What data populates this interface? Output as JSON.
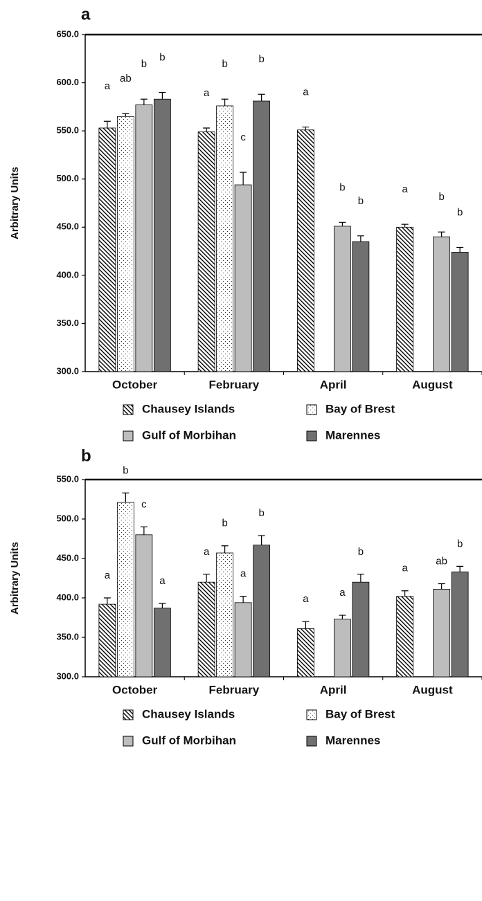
{
  "chart_data": [
    {
      "type": "bar",
      "panel_label": "a",
      "y_label": "Arbitrary Units",
      "categories": [
        "October",
        "February",
        "April",
        "August"
      ],
      "ylim": [
        300,
        650
      ],
      "yticks": [
        {
          "value": 300,
          "label": "300.0"
        },
        {
          "value": 350,
          "label": "350.0"
        },
        {
          "value": 400,
          "label": "400.0"
        },
        {
          "value": 450,
          "label": "450.0"
        },
        {
          "value": 500,
          "label": "500.0"
        },
        {
          "value": 550,
          "label": "550.0"
        },
        {
          "value": 600,
          "label": "600.0"
        },
        {
          "value": 650,
          "label": "650.0"
        }
      ],
      "series": [
        {
          "name": "Chausey Islands",
          "color": "#000000",
          "pattern": "hatch",
          "values": [
            553,
            549,
            551,
            450
          ],
          "errors": [
            7,
            4,
            3,
            3
          ],
          "annotations": [
            "a",
            "a",
            "a",
            "a"
          ]
        },
        {
          "name": "Bay of Brest",
          "color": "#000000",
          "pattern": "dots",
          "values": [
            565,
            576,
            null,
            null
          ],
          "errors": [
            3,
            7,
            null,
            null
          ],
          "annotations": [
            "ab",
            "b",
            null,
            null
          ]
        },
        {
          "name": "Gulf of Morbihan",
          "color": "#bdbdbd",
          "pattern": "solid",
          "values": [
            577,
            494,
            451,
            440
          ],
          "errors": [
            6,
            13,
            4,
            5
          ],
          "annotations": [
            "b",
            "c",
            "b",
            "b"
          ]
        },
        {
          "name": "Marennes",
          "color": "#707070",
          "pattern": "solid",
          "values": [
            583,
            581,
            435,
            424
          ],
          "errors": [
            7,
            7,
            6,
            5
          ],
          "annotations": [
            "b",
            "b",
            "b",
            "b"
          ]
        }
      ]
    },
    {
      "type": "bar",
      "panel_label": "b",
      "y_label": "Arbitrary Units",
      "categories": [
        "October",
        "February",
        "April",
        "August"
      ],
      "ylim": [
        300,
        550
      ],
      "yticks": [
        {
          "value": 300,
          "label": "300.0"
        },
        {
          "value": 350,
          "label": "350.0"
        },
        {
          "value": 400,
          "label": "400.0"
        },
        {
          "value": 450,
          "label": "450.0"
        },
        {
          "value": 500,
          "label": "500.0"
        },
        {
          "value": 550,
          "label": "550.0"
        }
      ],
      "series": [
        {
          "name": "Chausey Islands",
          "color": "#000000",
          "pattern": "hatch",
          "values": [
            392,
            420,
            361,
            402
          ],
          "errors": [
            8,
            10,
            9,
            7
          ],
          "annotations": [
            "a",
            "a",
            "a",
            "a"
          ]
        },
        {
          "name": "Bay of Brest",
          "color": "#000000",
          "pattern": "dots",
          "values": [
            521,
            457,
            null,
            null
          ],
          "errors": [
            12,
            9,
            null,
            null
          ],
          "annotations": [
            "b",
            "b",
            null,
            null
          ]
        },
        {
          "name": "Gulf of Morbihan",
          "color": "#bdbdbd",
          "pattern": "solid",
          "values": [
            480,
            394,
            373,
            411
          ],
          "errors": [
            10,
            8,
            5,
            7
          ],
          "annotations": [
            "c",
            "a",
            "a",
            "ab"
          ]
        },
        {
          "name": "Marennes",
          "color": "#707070",
          "pattern": "solid",
          "values": [
            387,
            467,
            420,
            433
          ],
          "errors": [
            6,
            12,
            10,
            7
          ],
          "annotations": [
            "a",
            "b",
            "b",
            "b"
          ]
        }
      ]
    }
  ]
}
